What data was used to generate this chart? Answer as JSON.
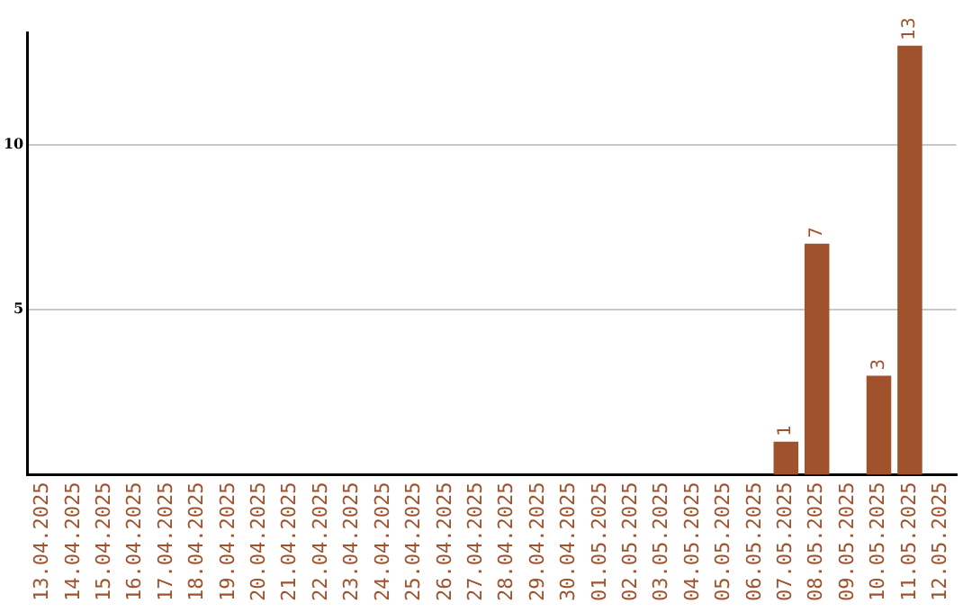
{
  "chart_data": {
    "type": "bar",
    "categories": [
      "13.04.2025",
      "14.04.2025",
      "15.04.2025",
      "16.04.2025",
      "17.04.2025",
      "18.04.2025",
      "19.04.2025",
      "20.04.2025",
      "21.04.2025",
      "22.04.2025",
      "23.04.2025",
      "24.04.2025",
      "25.04.2025",
      "26.04.2025",
      "27.04.2025",
      "28.04.2025",
      "29.04.2025",
      "30.04.2025",
      "01.05.2025",
      "02.05.2025",
      "03.05.2025",
      "04.05.2025",
      "05.05.2025",
      "06.05.2025",
      "07.05.2025",
      "08.05.2025",
      "09.05.2025",
      "10.05.2025",
      "11.05.2025",
      "12.05.2025"
    ],
    "values": [
      null,
      null,
      null,
      null,
      null,
      null,
      null,
      null,
      null,
      null,
      null,
      null,
      null,
      null,
      null,
      null,
      null,
      null,
      null,
      null,
      null,
      null,
      null,
      null,
      1,
      7,
      null,
      3,
      13,
      null
    ],
    "color": "#a0522d",
    "ylim": [
      0,
      13.4
    ],
    "yticks": [
      5,
      10
    ],
    "grid": "y",
    "data_labels": true,
    "legend": false
  }
}
